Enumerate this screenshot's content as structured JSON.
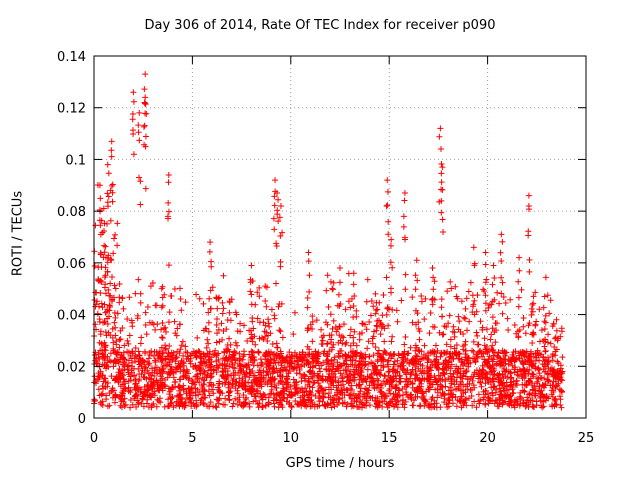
{
  "chart_data": {
    "type": "scatter",
    "title": "Day 306 of 2014, Rate Of TEC Index for receiver p090",
    "xlabel": "GPS time / hours",
    "ylabel": "ROTI / TECUs",
    "xlim": [
      0,
      25
    ],
    "ylim": [
      0,
      0.14
    ],
    "xticks": [
      "0",
      "5",
      "10",
      "15",
      "20",
      "25"
    ],
    "yticks": [
      "0",
      "0.02",
      "0.04",
      "0.06",
      "0.08",
      "0.1",
      "0.12",
      "0.14"
    ],
    "grid": true,
    "marker": "+",
    "color": "#ff0000",
    "data_extent_hours": [
      0,
      23.8
    ],
    "series": [
      {
        "name": "ROTI",
        "x": [
          0.3,
          0.5,
          0.7,
          0.9,
          2.0,
          2.3,
          2.6,
          2.6,
          3.8,
          4.4,
          5.9,
          8.0,
          8.7,
          9.2,
          9.3,
          9.5,
          10.9,
          12.5,
          13.2,
          14.3,
          14.9,
          15.1,
          15.8,
          16.4,
          17.2,
          17.6,
          17.7,
          19.3,
          19.9,
          20.3,
          20.7,
          21.6,
          22.1,
          22.9,
          23.5
        ],
        "y": [
          0.09,
          0.081,
          0.098,
          0.107,
          0.126,
          0.118,
          0.133,
          0.124,
          0.094,
          0.046,
          0.068,
          0.059,
          0.051,
          0.092,
          0.087,
          0.082,
          0.064,
          0.058,
          0.056,
          0.048,
          0.092,
          0.069,
          0.087,
          0.061,
          0.058,
          0.112,
          0.097,
          0.066,
          0.064,
          0.059,
          0.071,
          0.062,
          0.086,
          0.047,
          0.038
        ]
      }
    ],
    "dense_band": {
      "median": 0.015,
      "typical_max": 0.04
    }
  }
}
